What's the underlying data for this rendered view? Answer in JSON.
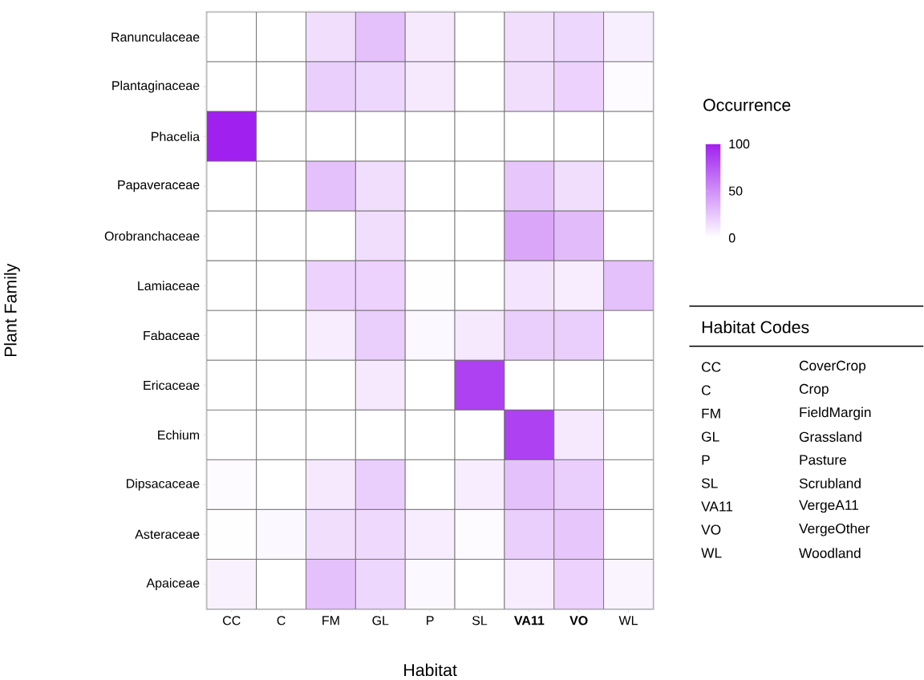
{
  "chart_data": {
    "type": "heatmap",
    "xlabel": "Habitat",
    "ylabel": "Plant Family",
    "clabel": "Occurrence",
    "categories": [
      "CC",
      "C",
      "FM",
      "GL",
      "P",
      "SL",
      "**VA11**",
      "**VO**",
      "WL"
    ],
    "y_categories": [
      "Ranunculaceae",
      "Plantaginaceae",
      "Phacelia",
      "Papaveraceae",
      "Orobranchaceae",
      "Lamiaceae",
      "Fabaceae",
      "Ericaceae",
      "Echium",
      "Dipsacaceae",
      "Asteraceae",
      "Apaiceae"
    ],
    "cells": [
      [
        0,
        0,
        15,
        28,
        10,
        0,
        15,
        18,
        7
      ],
      [
        0,
        0,
        22,
        18,
        10,
        0,
        15,
        20,
        2
      ],
      [
        100,
        0,
        0,
        0,
        0,
        0,
        0,
        0,
        0
      ],
      [
        0,
        0,
        28,
        15,
        0,
        0,
        25,
        15,
        0
      ],
      [
        0,
        0,
        0,
        15,
        0,
        0,
        40,
        30,
        0
      ],
      [
        0,
        0,
        20,
        20,
        1,
        0,
        12,
        8,
        28
      ],
      [
        0,
        0,
        8,
        22,
        3,
        10,
        22,
        22,
        0
      ],
      [
        0,
        0,
        0,
        10,
        0,
        85,
        0,
        0,
        0
      ],
      [
        0,
        0,
        0,
        0,
        0,
        0,
        85,
        10,
        0
      ],
      [
        2,
        0,
        10,
        22,
        0,
        8,
        28,
        22,
        0
      ],
      [
        1,
        3,
        15,
        17,
        8,
        2,
        22,
        25,
        0
      ],
      [
        6,
        0,
        28,
        18,
        3,
        0,
        8,
        20,
        5
      ]
    ],
    "clim": [
      0,
      100
    ],
    "cticks": [
      0,
      50,
      100
    ],
    "annotations": [
      "Habitat Codes",
      "CC",
      "CoverCrop",
      "C",
      "Crop",
      "FM",
      "FieldMargin",
      "GL",
      "Grassland",
      "P",
      "Pasture",
      "SL",
      "Scrubland",
      "VA11",
      "VergeA11",
      "VO",
      "VergeOther",
      "WL",
      "Woodland"
    ]
  }
}
